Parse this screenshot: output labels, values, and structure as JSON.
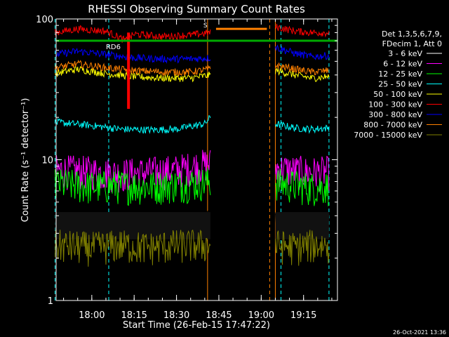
{
  "chart_data": {
    "type": "line",
    "title": "RHESSI Observing Summary Count Rates",
    "xlabel": "Start Time (26-Feb-15 17:47:22)",
    "ylabel": "Count Rate (s⁻¹ detector⁻¹)",
    "yscale": "log",
    "ylim": [
      1,
      100
    ],
    "xlim": [
      "17:47:22",
      "19:27:00"
    ],
    "x_ticks": [
      "18:00",
      "18:15",
      "18:30",
      "18:45",
      "19:00",
      "19:15"
    ],
    "y_ticks": [
      "1",
      "10",
      "100"
    ],
    "legend_header": [
      "Det 1,3,5,6,7,9,",
      "FDecim 1, Att 0"
    ],
    "legend_position": "right",
    "series": [
      {
        "name": "3 - 6 keV",
        "color": "#000000",
        "segments": [
          {
            "x": [
              "17:47",
              "18:00",
              "18:10",
              "18:20",
              "18:30",
              "18:42"
            ],
            "y": [
              3.4,
              3.2,
              3.3,
              3.1,
              3.3,
              3.4
            ]
          },
          {
            "x": [
              "19:05",
              "19:12",
              "19:18",
              "19:24"
            ],
            "y": [
              3.4,
              3.3,
              3.2,
              3.3
            ]
          }
        ]
      },
      {
        "name": "6 - 12 keV",
        "color": "#ff00ff",
        "segments": [
          {
            "x": [
              "17:47",
              "18:00",
              "18:10",
              "18:20",
              "18:30",
              "18:42"
            ],
            "y": [
              8.5,
              8.3,
              8.0,
              8.2,
              8.5,
              9.5
            ]
          },
          {
            "x": [
              "19:05",
              "19:12",
              "19:18",
              "19:24"
            ],
            "y": [
              8.8,
              8.4,
              8.2,
              8.3
            ]
          }
        ]
      },
      {
        "name": "12 - 25 keV",
        "color": "#00ff00",
        "segments": [
          {
            "x": [
              "17:47",
              "18:00",
              "18:10",
              "18:20",
              "18:30",
              "18:42"
            ],
            "y": [
              6.8,
              6.5,
              6.6,
              6.5,
              6.7,
              7.0
            ]
          },
          {
            "x": [
              "19:05",
              "19:12",
              "19:18",
              "19:24"
            ],
            "y": [
              6.9,
              6.6,
              6.4,
              6.5
            ]
          }
        ]
      },
      {
        "name": "25 - 50 keV",
        "color": "#00ffff",
        "segments": [
          {
            "x": [
              "17:47",
              "18:00",
              "18:10",
              "18:20",
              "18:30",
              "18:40",
              "18:42"
            ],
            "y": [
              18.5,
              17.5,
              16.5,
              16.3,
              16.5,
              18.0,
              20.0
            ]
          },
          {
            "x": [
              "19:05",
              "19:12",
              "19:18",
              "19:24"
            ],
            "y": [
              18.0,
              16.8,
              16.5,
              16.8
            ]
          }
        ]
      },
      {
        "name": "50 - 100 keV",
        "color": "#ffff00",
        "segments": [
          {
            "x": [
              "17:47",
              "17:55",
              "18:05",
              "18:15",
              "18:25",
              "18:35",
              "18:42"
            ],
            "y": [
              41,
              44,
              41,
              39,
              38,
              38,
              40
            ]
          },
          {
            "x": [
              "19:05",
              "19:12",
              "19:18",
              "19:24"
            ],
            "y": [
              43,
              40,
              38,
              39
            ]
          }
        ]
      },
      {
        "name": "100 - 300 keV",
        "color": "#ff0000",
        "segments": [
          {
            "x": [
              "17:47",
              "17:55",
              "18:05",
              "18:12",
              "18:15",
              "18:25",
              "18:35",
              "18:42"
            ],
            "y": [
              80,
              85,
              82,
              70,
              78,
              75,
              77,
              80
            ]
          },
          {
            "x": [
              "19:05",
              "19:12",
              "19:18",
              "19:24"
            ],
            "y": [
              88,
              82,
              80,
              80
            ]
          }
        ]
      },
      {
        "name": "300 - 800 keV",
        "color": "#0000ff",
        "segments": [
          {
            "x": [
              "17:47",
              "17:55",
              "18:05",
              "18:15",
              "18:25",
              "18:35",
              "18:42"
            ],
            "y": [
              56,
              59,
              56,
              53,
              52,
              52,
              53
            ]
          },
          {
            "x": [
              "19:05",
              "19:12",
              "19:18",
              "19:24"
            ],
            "y": [
              63,
              57,
              54,
              55
            ]
          }
        ]
      },
      {
        "name": "800 - 7000 keV",
        "color": "#ff8000",
        "segments": [
          {
            "x": [
              "17:47",
              "17:55",
              "18:05",
              "18:15",
              "18:25",
              "18:35",
              "18:42"
            ],
            "y": [
              45,
              48,
              45,
              43,
              42,
              42,
              44
            ]
          },
          {
            "x": [
              "19:05",
              "19:12",
              "19:18",
              "19:24"
            ],
            "y": [
              47,
              44,
              42,
              43
            ]
          }
        ]
      },
      {
        "name": "7000 - 15000 keV",
        "color": "#808000",
        "segments": [
          {
            "x": [
              "17:47",
              "18:00",
              "18:10",
              "18:20",
              "18:30",
              "18:42"
            ],
            "y": [
              2.5,
              2.4,
              2.5,
              2.4,
              2.5,
              2.5
            ]
          },
          {
            "x": [
              "19:05",
              "19:12",
              "19:18",
              "19:24"
            ],
            "y": [
              2.5,
              2.4,
              2.5,
              2.5
            ]
          }
        ]
      }
    ],
    "overlays": {
      "green_flag_level": 70,
      "green_flag_label": "RD6",
      "green_flag_color": "#00aa00",
      "orange_flag_level": 85,
      "orange_flag_span": [
        "18:44",
        "19:02"
      ],
      "orange_flag_label": "S",
      "saa_dip": {
        "time": "18:13",
        "y": 23
      },
      "night_lines": {
        "color": "#00ffff",
        "times": [
          "17:47",
          "18:06",
          "19:07",
          "19:24"
        ]
      },
      "orange_vlines_solid": [
        "18:41",
        "19:05"
      ],
      "orange_vlines_dashed": [
        "19:03"
      ]
    }
  },
  "timestamp": "26-Oct-2021 13:36"
}
